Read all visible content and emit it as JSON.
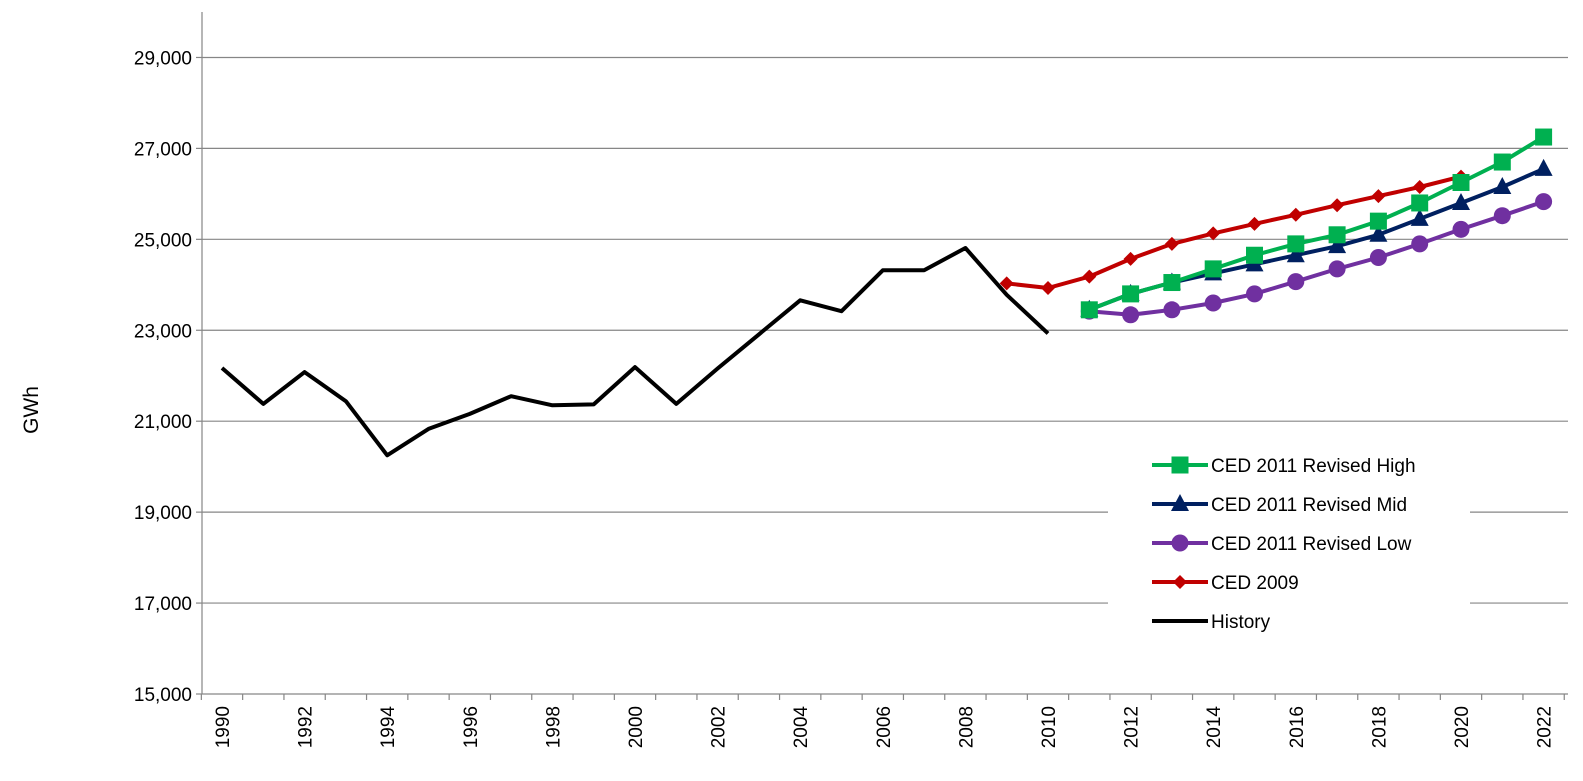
{
  "chart_data": {
    "type": "line",
    "title": "",
    "xlabel": "",
    "ylabel": "GWh",
    "ylim": [
      15000,
      30000
    ],
    "xlim": [
      1990,
      2022
    ],
    "yticks": [
      "15,000",
      "17,000",
      "19,000",
      "21,000",
      "23,000",
      "25,000",
      "27,000",
      "29,000"
    ],
    "xticks": [
      "1990",
      "1992",
      "1994",
      "1996",
      "1998",
      "2000",
      "2002",
      "2004",
      "2006",
      "2008",
      "2010",
      "2012",
      "2014",
      "2016",
      "2018",
      "2020",
      "2022"
    ],
    "grid": "horizontal",
    "legend_position": "lower-right",
    "series": [
      {
        "name": "CED 2011 Revised High",
        "color": "#00B050",
        "marker": "square",
        "x": [
          2011,
          2012,
          2013,
          2014,
          2015,
          2016,
          2017,
          2018,
          2019,
          2020,
          2021,
          2022
        ],
        "values": [
          23450,
          23800,
          24050,
          24350,
          24650,
          24900,
          25100,
          25400,
          25800,
          26250,
          26700,
          27250
        ]
      },
      {
        "name": "CED 2011 Revised Mid",
        "color": "#002060",
        "marker": "triangle",
        "x": [
          2011,
          2012,
          2013,
          2014,
          2015,
          2016,
          2017,
          2018,
          2019,
          2020,
          2021,
          2022
        ],
        "values": [
          23450,
          23800,
          24050,
          24250,
          24450,
          24650,
          24850,
          25100,
          25450,
          25800,
          26150,
          26550
        ]
      },
      {
        "name": "CED 2011 Revised Low",
        "color": "#7030A0",
        "marker": "circle",
        "x": [
          2011,
          2012,
          2013,
          2014,
          2015,
          2016,
          2017,
          2018,
          2019,
          2020,
          2021,
          2022
        ],
        "values": [
          23420,
          23340,
          23450,
          23600,
          23800,
          24070,
          24350,
          24600,
          24900,
          25220,
          25520,
          25830
        ]
      },
      {
        "name": "CED 2009",
        "color": "#C00000",
        "marker": "diamond",
        "x": [
          2009,
          2010,
          2011,
          2012,
          2013,
          2014,
          2015,
          2016,
          2017,
          2018,
          2019,
          2020
        ],
        "values": [
          24030,
          23930,
          24180,
          24570,
          24900,
          25130,
          25340,
          25540,
          25750,
          25950,
          26150,
          26380
        ]
      },
      {
        "name": "History",
        "color": "#000000",
        "marker": "none",
        "x": [
          1990,
          1991,
          1992,
          1993,
          1994,
          1995,
          1996,
          1997,
          1998,
          1999,
          2000,
          2001,
          2002,
          2003,
          2004,
          2005,
          2006,
          2007,
          2008,
          2009,
          2010
        ],
        "values": [
          22170,
          21380,
          22080,
          21440,
          20250,
          20830,
          21160,
          21550,
          21350,
          21370,
          22190,
          21380,
          22160,
          22910,
          23660,
          23420,
          24320,
          24320,
          24810,
          23780,
          22930
        ]
      }
    ]
  }
}
